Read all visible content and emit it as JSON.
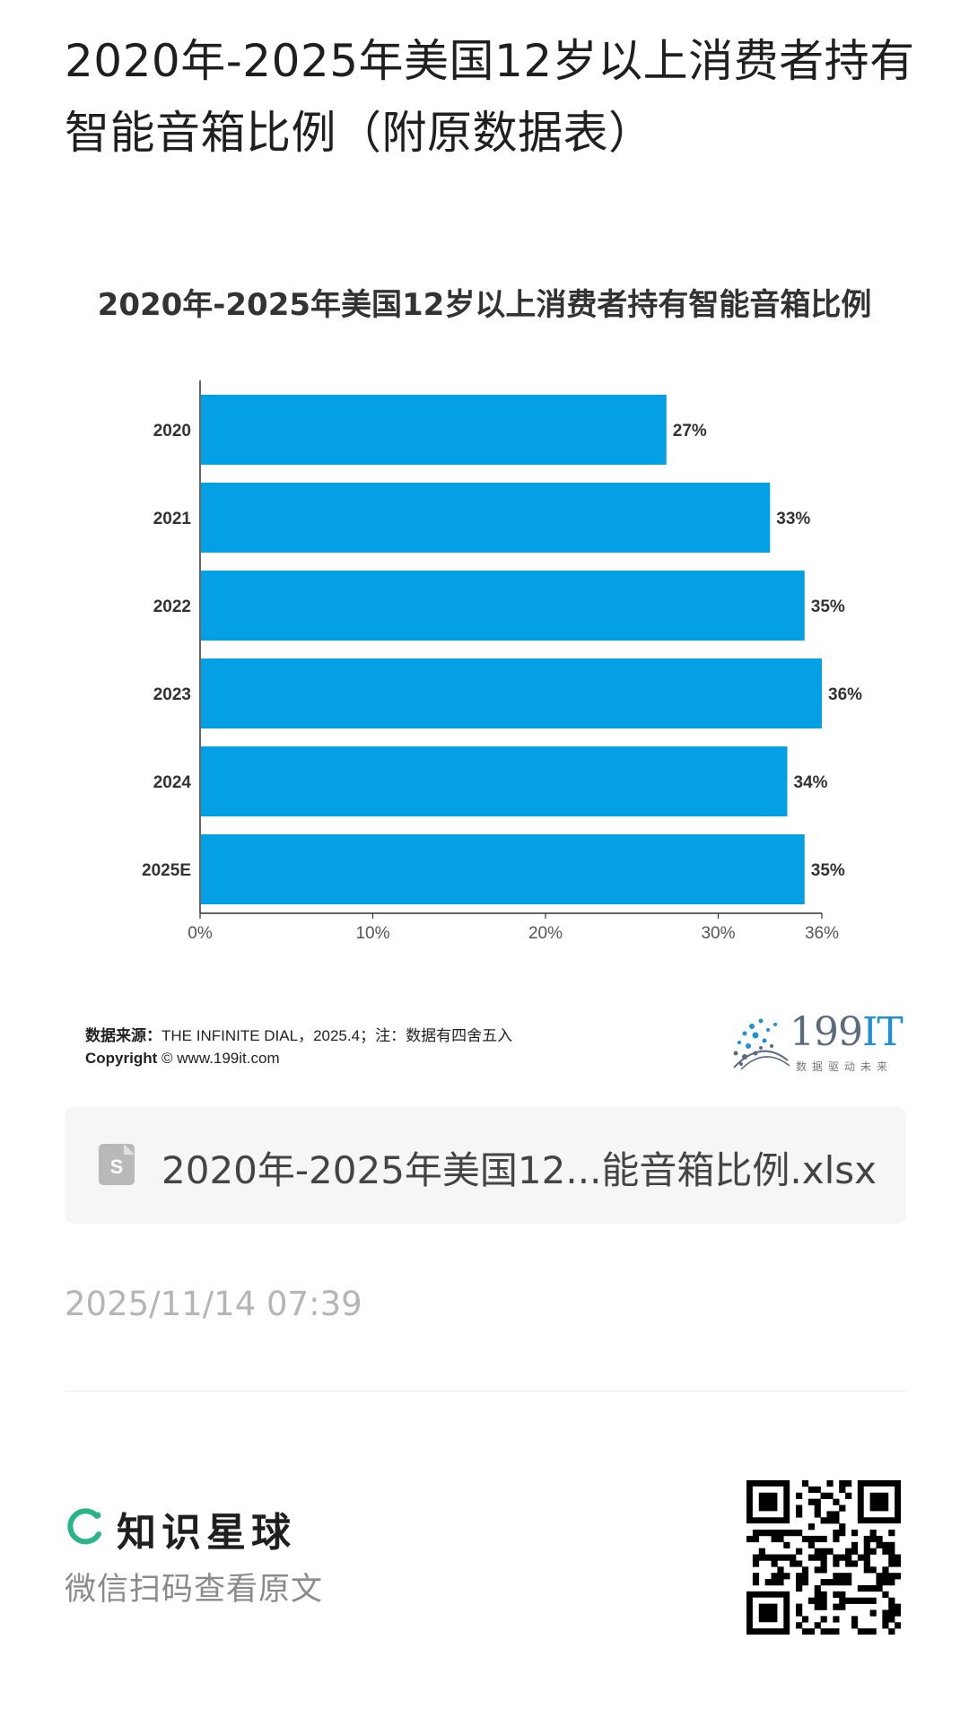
{
  "page": {
    "title": "2020年-2025年美国12岁以上消费者持有智能音箱比例（附原数据表）"
  },
  "chart_data": {
    "type": "bar",
    "orientation": "horizontal",
    "title": "2020年-2025年美国12岁以上消费者持有智能音箱比例",
    "categories": [
      "2020",
      "2021",
      "2022",
      "2023",
      "2024",
      "2025E"
    ],
    "values": [
      27,
      33,
      35,
      36,
      34,
      35
    ],
    "data_labels": [
      "27%",
      "33%",
      "35%",
      "36%",
      "34%",
      "35%"
    ],
    "x_ticks": [
      "0%",
      "10%",
      "20%",
      "30%",
      "36%"
    ],
    "x_tick_values": [
      0,
      10,
      20,
      30,
      36
    ],
    "xlim": [
      0,
      36
    ],
    "xlabel": "",
    "ylabel": "",
    "bar_color": "#03a0e6",
    "grid": false
  },
  "source": {
    "label": "数据来源：",
    "text": "THE INFINITE DIAL，2025.4；注：数据有四舍五入",
    "copyright_label": "Copyright",
    "copyright_symbol": "©",
    "copyright_url": "www.199it.com"
  },
  "brand": {
    "name_digits": "199",
    "name_it": "IT",
    "slogan": "数据驱动未来",
    "accent_color": "#1f8fd6"
  },
  "file": {
    "name": "2020年-2025年美国12...能音箱比例.xlsx",
    "icon": "spreadsheet-file-icon"
  },
  "timestamp": "2025/11/14 07:39",
  "footer": {
    "app_name": "知识星球",
    "scan_hint": "微信扫码查看原文",
    "logo_color": "#2bb389",
    "qr_icon": "qr-code-icon"
  }
}
